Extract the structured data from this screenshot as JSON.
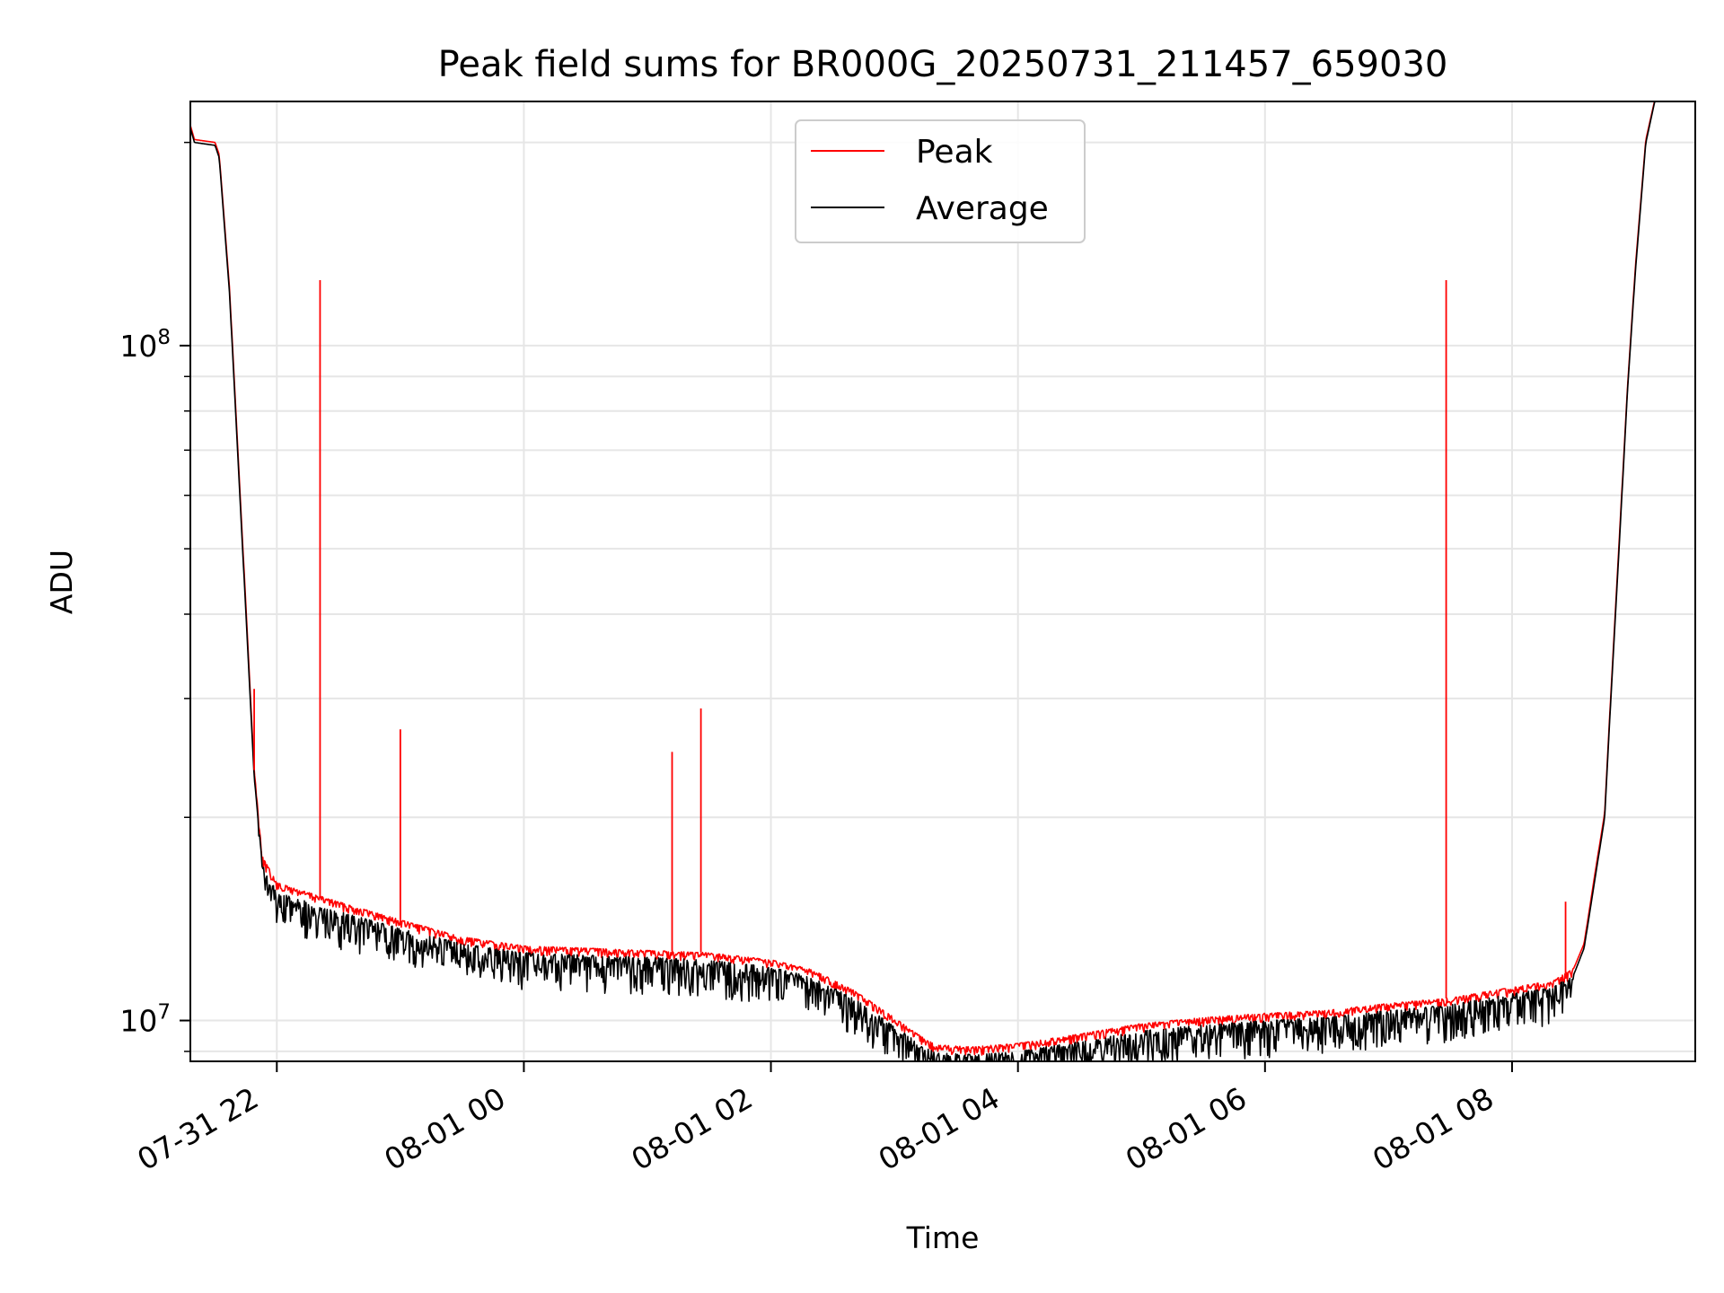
{
  "chart_data": {
    "type": "line",
    "title": "Peak field sums for BR000G_20250731_211457_659030",
    "xlabel": "Time",
    "ylabel": "ADU",
    "yscale": "log",
    "ylim": [
      8700000,
      230000000
    ],
    "xlim": [
      "2025-07-31 21:18",
      "2025-08-01 09:29"
    ],
    "x_ticks": [
      {
        "x": "2025-07-31 22:00",
        "label": "07-31 22"
      },
      {
        "x": "2025-08-01 00:00",
        "label": "08-01 00"
      },
      {
        "x": "2025-08-01 02:00",
        "label": "08-01 02"
      },
      {
        "x": "2025-08-01 04:00",
        "label": "08-01 04"
      },
      {
        "x": "2025-08-01 06:00",
        "label": "08-01 06"
      },
      {
        "x": "2025-08-01 08:00",
        "label": "08-01 08"
      }
    ],
    "y_major_ticks": [
      {
        "y": 10000000,
        "base": "10",
        "exp": "7"
      },
      {
        "y": 100000000,
        "base": "10",
        "exp": "8"
      }
    ],
    "y_minor_ticks": [
      9000000,
      20000000,
      30000000,
      40000000,
      50000000,
      60000000,
      70000000,
      80000000,
      90000000,
      200000000
    ],
    "grid": true,
    "legend": {
      "placement": "top-center",
      "entries": [
        {
          "label": "Peak",
          "color": "#ff0000"
        },
        {
          "label": "Average",
          "color": "#000000"
        }
      ]
    },
    "series": [
      {
        "name": "Average",
        "color": "#000000",
        "x": [
          "2025-07-31 21:18",
          "2025-07-31 21:20",
          "2025-07-31 21:30",
          "2025-07-31 21:32",
          "2025-07-31 21:37",
          "2025-07-31 21:45",
          "2025-07-31 21:49",
          "2025-07-31 21:53",
          "2025-07-31 22:00",
          "2025-07-31 22:30",
          "2025-07-31 23:00",
          "2025-07-31 23:30",
          "2025-08-01 00:00",
          "2025-08-01 00:30",
          "2025-08-01 01:00",
          "2025-08-01 01:30",
          "2025-08-01 02:00",
          "2025-08-01 02:20",
          "2025-08-01 02:40",
          "2025-08-01 03:00",
          "2025-08-01 03:10",
          "2025-08-01 03:20",
          "2025-08-01 03:40",
          "2025-08-01 04:00",
          "2025-08-01 04:30",
          "2025-08-01 05:00",
          "2025-08-01 05:30",
          "2025-08-01 06:00",
          "2025-08-01 06:30",
          "2025-08-01 07:00",
          "2025-08-01 07:30",
          "2025-08-01 08:00",
          "2025-08-01 08:20",
          "2025-08-01 08:30",
          "2025-08-01 08:35",
          "2025-08-01 08:40",
          "2025-08-01 08:45",
          "2025-08-01 08:48",
          "2025-08-01 08:52",
          "2025-08-01 08:56",
          "2025-08-01 09:00",
          "2025-08-01 09:05",
          "2025-08-01 09:10"
        ],
        "y": [
          210000000,
          200000000,
          198000000,
          190000000,
          120000000,
          40000000,
          23000000,
          17000000,
          15500000,
          14500000,
          13700000,
          13000000,
          12600000,
          12500000,
          12400000,
          12300000,
          12000000,
          11600000,
          10800000,
          9800000,
          9350000,
          8950000,
          8900000,
          9000000,
          9300000,
          9650000,
          9850000,
          10000000,
          10100000,
          10350000,
          10550000,
          10950000,
          11200000,
          11700000,
          12800000,
          16000000,
          20000000,
          30000000,
          50000000,
          85000000,
          130000000,
          200000000,
          235000000
        ]
      },
      {
        "name": "Peak",
        "color": "#ff0000",
        "x": [
          "2025-07-31 21:18",
          "2025-07-31 21:20",
          "2025-07-31 21:30",
          "2025-07-31 21:32",
          "2025-07-31 21:37",
          "2025-07-31 21:45",
          "2025-07-31 21:49",
          "2025-07-31 21:53",
          "2025-07-31 22:00",
          "2025-07-31 22:30",
          "2025-07-31 23:00",
          "2025-07-31 23:30",
          "2025-08-01 00:00",
          "2025-08-01 00:30",
          "2025-08-01 01:00",
          "2025-08-01 01:30",
          "2025-08-01 02:00",
          "2025-08-01 02:20",
          "2025-08-01 02:40",
          "2025-08-01 03:00",
          "2025-08-01 03:10",
          "2025-08-01 03:20",
          "2025-08-01 03:40",
          "2025-08-01 04:00",
          "2025-08-01 04:30",
          "2025-08-01 05:00",
          "2025-08-01 05:30",
          "2025-08-01 06:00",
          "2025-08-01 06:30",
          "2025-08-01 07:00",
          "2025-08-01 07:30",
          "2025-08-01 08:00",
          "2025-08-01 08:20",
          "2025-08-01 08:30",
          "2025-08-01 08:35",
          "2025-08-01 08:40",
          "2025-08-01 08:45",
          "2025-08-01 08:48",
          "2025-08-01 08:52",
          "2025-08-01 08:56",
          "2025-08-01 09:00",
          "2025-08-01 09:05",
          "2025-08-01 09:10"
        ],
        "y": [
          212000000,
          202000000,
          200000000,
          192000000,
          122000000,
          41000000,
          23500000,
          17500000,
          16000000,
          15000000,
          14100000,
          13300000,
          12900000,
          12800000,
          12700000,
          12600000,
          12300000,
          11900000,
          11100000,
          10100000,
          9600000,
          9200000,
          9150000,
          9250000,
          9550000,
          9900000,
          10100000,
          10250000,
          10350000,
          10600000,
          10800000,
          11200000,
          11450000,
          11950000,
          13000000,
          16300000,
          20300000,
          30500000,
          51000000,
          86000000,
          132000000,
          202000000,
          236000000
        ],
        "spikes": [
          {
            "x": "2025-07-31 22:21",
            "y": 125000000
          },
          {
            "x": "2025-07-31 23:00",
            "y": 27000000
          },
          {
            "x": "2025-08-01 01:12",
            "y": 25000000
          },
          {
            "x": "2025-08-01 01:26",
            "y": 29000000
          },
          {
            "x": "2025-08-01 07:28",
            "y": 125000000
          },
          {
            "x": "2025-08-01 08:26",
            "y": 15000000
          },
          {
            "x": "2025-07-31 21:49",
            "y": 31000000
          }
        ]
      }
    ]
  }
}
